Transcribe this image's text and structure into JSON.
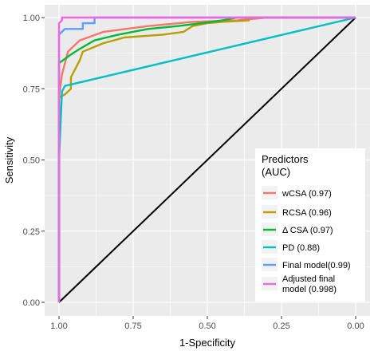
{
  "chart_data": {
    "type": "line",
    "title": "",
    "xlabel": "1-Specificity",
    "ylabel": "Sensitivity",
    "x_reversed": true,
    "xlim": [
      1.0,
      0.0
    ],
    "ylim": [
      0.0,
      1.0
    ],
    "x_ticks": [
      "1.00",
      "0.75",
      "0.50",
      "0.25",
      "0.00"
    ],
    "y_ticks": [
      "0.00",
      "0.25",
      "0.50",
      "0.75",
      "1.00"
    ],
    "grid": true,
    "legend": {
      "title_line1": "Predictors",
      "title_line2": "(AUC)",
      "placement": "bottom-right"
    },
    "reference_line": {
      "color": "#000000",
      "points": [
        [
          1.0,
          0.0
        ],
        [
          0.0,
          1.0
        ]
      ]
    },
    "series": [
      {
        "label": "wCSA (0.97)",
        "color": "#F8766D",
        "points": [
          [
            1.0,
            0.0
          ],
          [
            1.0,
            0.72
          ],
          [
            0.99,
            0.8
          ],
          [
            0.97,
            0.88
          ],
          [
            0.93,
            0.92
          ],
          [
            0.85,
            0.95
          ],
          [
            0.7,
            0.97
          ],
          [
            0.55,
            0.985
          ],
          [
            0.4,
            0.99
          ],
          [
            0.3,
            1.0
          ],
          [
            0.0,
            1.0
          ]
        ]
      },
      {
        "label": "RCSA (0.96)",
        "color": "#B79F00",
        "points": [
          [
            1.0,
            0.0
          ],
          [
            1.0,
            0.72
          ],
          [
            0.98,
            0.73
          ],
          [
            0.97,
            0.74
          ],
          [
            0.96,
            0.75
          ],
          [
            0.96,
            0.79
          ],
          [
            0.93,
            0.85
          ],
          [
            0.92,
            0.88
          ],
          [
            0.85,
            0.91
          ],
          [
            0.78,
            0.93
          ],
          [
            0.65,
            0.94
          ],
          [
            0.58,
            0.95
          ],
          [
            0.55,
            0.97
          ],
          [
            0.5,
            0.98
          ],
          [
            0.45,
            0.985
          ],
          [
            0.36,
            0.99
          ],
          [
            0.36,
            1.0
          ],
          [
            0.0,
            1.0
          ]
        ]
      },
      {
        "label": "Δ CSA (0.97)",
        "color": "#00BA38",
        "points": [
          [
            1.0,
            0.0
          ],
          [
            1.0,
            0.84
          ],
          [
            0.96,
            0.87
          ],
          [
            0.93,
            0.89
          ],
          [
            0.88,
            0.92
          ],
          [
            0.8,
            0.94
          ],
          [
            0.7,
            0.96
          ],
          [
            0.6,
            0.97
          ],
          [
            0.52,
            0.98
          ],
          [
            0.45,
            0.99
          ],
          [
            0.4,
            1.0
          ],
          [
            0.0,
            1.0
          ]
        ]
      },
      {
        "label": "PD (0.88)",
        "color": "#00BFC4",
        "points": [
          [
            1.0,
            0.0
          ],
          [
            1.0,
            0.5
          ],
          [
            0.99,
            0.74
          ],
          [
            0.98,
            0.76
          ],
          [
            0.0,
            1.0
          ]
        ]
      },
      {
        "label": "Final model(0.99)",
        "color": "#619CFF",
        "points": [
          [
            1.0,
            0.0
          ],
          [
            1.0,
            0.94
          ],
          [
            0.98,
            0.96
          ],
          [
            0.92,
            0.96
          ],
          [
            0.92,
            0.98
          ],
          [
            0.88,
            0.98
          ],
          [
            0.88,
            1.0
          ],
          [
            0.0,
            1.0
          ]
        ]
      },
      {
        "label": "Adjusted final model (0.998)",
        "color": "#F564E3",
        "points": [
          [
            1.0,
            0.0
          ],
          [
            1.0,
            0.98
          ],
          [
            0.99,
            0.99
          ],
          [
            0.99,
            1.0
          ],
          [
            0.0,
            1.0
          ]
        ]
      }
    ]
  }
}
